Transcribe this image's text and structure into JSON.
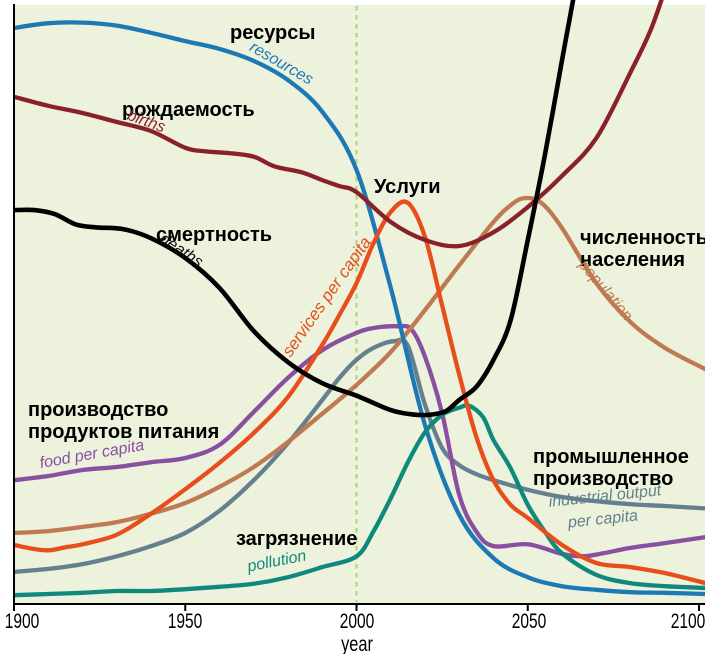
{
  "canvas": {
    "page_background": "#ffffff",
    "plot_background": "#ecf2dc",
    "axis_color": "#000000"
  },
  "chart_data": {
    "type": "line",
    "title": "",
    "xlabel": "year",
    "ylabel": "",
    "x_range": [
      1900,
      2100
    ],
    "x_ticks": [
      1900,
      1950,
      2000,
      2050,
      2100
    ],
    "x_tick_labels": [
      "1900",
      "1950",
      "2000",
      "2050",
      "2100"
    ],
    "y_axis_note": "unlabeled relative scale, 0 = bottom axis, 1 = top of plot",
    "grid": false,
    "legend": "labels drawn next to curves",
    "reference_line": {
      "year": 2000,
      "style": "dashed",
      "color": "#afd67f"
    },
    "series": [
      {
        "id": "resources",
        "label_ru": "ресурсы",
        "label_en": "resources",
        "color": "#1d79b4",
        "points": [
          [
            1900,
            0.96
          ],
          [
            1910,
            0.968
          ],
          [
            1920,
            0.969
          ],
          [
            1930,
            0.964
          ],
          [
            1940,
            0.952
          ],
          [
            1950,
            0.938
          ],
          [
            1960,
            0.925
          ],
          [
            1970,
            0.905
          ],
          [
            1980,
            0.873
          ],
          [
            1990,
            0.82
          ],
          [
            2000,
            0.723
          ],
          [
            2010,
            0.526
          ],
          [
            2020,
            0.297
          ],
          [
            2030,
            0.147
          ],
          [
            2040,
            0.075
          ],
          [
            2050,
            0.043
          ],
          [
            2060,
            0.028
          ],
          [
            2070,
            0.022
          ],
          [
            2080,
            0.018
          ],
          [
            2090,
            0.017
          ],
          [
            2102,
            0.015
          ]
        ]
      },
      {
        "id": "births",
        "label_ru": "рождаемость",
        "label_en": "births",
        "color": "#8a212a",
        "points": [
          [
            1900,
            0.845
          ],
          [
            1910,
            0.83
          ],
          [
            1920,
            0.818
          ],
          [
            1930,
            0.803
          ],
          [
            1940,
            0.788
          ],
          [
            1950,
            0.76
          ],
          [
            1956,
            0.754
          ],
          [
            1963,
            0.751
          ],
          [
            1970,
            0.745
          ],
          [
            1976,
            0.729
          ],
          [
            1984,
            0.719
          ],
          [
            1990,
            0.706
          ],
          [
            1995,
            0.696
          ],
          [
            2000,
            0.686
          ],
          [
            2010,
            0.636
          ],
          [
            2020,
            0.606
          ],
          [
            2030,
            0.596
          ],
          [
            2040,
            0.619
          ],
          [
            2050,
            0.661
          ],
          [
            2060,
            0.713
          ],
          [
            2070,
            0.776
          ],
          [
            2080,
            0.886
          ],
          [
            2086,
            0.958
          ],
          [
            2091,
            1.04
          ]
        ]
      },
      {
        "id": "deaths",
        "label_ru": "смертность",
        "label_en": "deaths",
        "color": "#000000",
        "points": [
          [
            1900,
            0.656
          ],
          [
            1906,
            0.656
          ],
          [
            1912,
            0.649
          ],
          [
            1918,
            0.632
          ],
          [
            1924,
            0.627
          ],
          [
            1932,
            0.624
          ],
          [
            1940,
            0.609
          ],
          [
            1950,
            0.576
          ],
          [
            1960,
            0.526
          ],
          [
            1970,
            0.454
          ],
          [
            1980,
            0.402
          ],
          [
            1990,
            0.367
          ],
          [
            2000,
            0.346
          ],
          [
            2010,
            0.322
          ],
          [
            2016,
            0.315
          ],
          [
            2021,
            0.314
          ],
          [
            2026,
            0.32
          ],
          [
            2030,
            0.339
          ],
          [
            2035,
            0.361
          ],
          [
            2040,
            0.406
          ],
          [
            2045,
            0.472
          ],
          [
            2050,
            0.606
          ],
          [
            2055,
            0.748
          ],
          [
            2060,
            0.906
          ],
          [
            2064,
            1.03
          ]
        ]
      },
      {
        "id": "services",
        "label_ru": "Услуги",
        "label_en": "services per capita",
        "color": "#e84e1c",
        "points": [
          [
            1900,
            0.097
          ],
          [
            1905,
            0.091
          ],
          [
            1910,
            0.088
          ],
          [
            1915,
            0.093
          ],
          [
            1920,
            0.098
          ],
          [
            1930,
            0.114
          ],
          [
            1940,
            0.149
          ],
          [
            1950,
            0.19
          ],
          [
            1960,
            0.234
          ],
          [
            1970,
            0.284
          ],
          [
            1980,
            0.344
          ],
          [
            1990,
            0.431
          ],
          [
            1995,
            0.481
          ],
          [
            2000,
            0.534
          ],
          [
            2005,
            0.601
          ],
          [
            2010,
            0.653
          ],
          [
            2015,
            0.668
          ],
          [
            2020,
            0.611
          ],
          [
            2025,
            0.497
          ],
          [
            2030,
            0.381
          ],
          [
            2035,
            0.277
          ],
          [
            2040,
            0.205
          ],
          [
            2045,
            0.164
          ],
          [
            2050,
            0.142
          ],
          [
            2060,
            0.097
          ],
          [
            2070,
            0.067
          ],
          [
            2080,
            0.06
          ],
          [
            2090,
            0.05
          ],
          [
            2102,
            0.033
          ]
        ]
      },
      {
        "id": "population",
        "label_ru": "численность\nнаселения",
        "label_en": "population",
        "color": "#c07a51",
        "points": [
          [
            1900,
            0.117
          ],
          [
            1910,
            0.12
          ],
          [
            1920,
            0.127
          ],
          [
            1930,
            0.135
          ],
          [
            1940,
            0.149
          ],
          [
            1950,
            0.167
          ],
          [
            1960,
            0.194
          ],
          [
            1970,
            0.227
          ],
          [
            1980,
            0.269
          ],
          [
            1990,
            0.316
          ],
          [
            2000,
            0.364
          ],
          [
            2010,
            0.419
          ],
          [
            2020,
            0.489
          ],
          [
            2030,
            0.564
          ],
          [
            2040,
            0.636
          ],
          [
            2045,
            0.664
          ],
          [
            2049,
            0.676
          ],
          [
            2054,
            0.668
          ],
          [
            2060,
            0.626
          ],
          [
            2070,
            0.534
          ],
          [
            2080,
            0.469
          ],
          [
            2090,
            0.426
          ],
          [
            2102,
            0.39
          ]
        ]
      },
      {
        "id": "food",
        "label_ru": "производство\nпродуктов питания",
        "label_en": "food per capita",
        "color": "#8a4fa0",
        "points": [
          [
            1900,
            0.205
          ],
          [
            1910,
            0.212
          ],
          [
            1920,
            0.222
          ],
          [
            1930,
            0.227
          ],
          [
            1940,
            0.235
          ],
          [
            1950,
            0.242
          ],
          [
            1960,
            0.264
          ],
          [
            1970,
            0.319
          ],
          [
            1980,
            0.376
          ],
          [
            1990,
            0.422
          ],
          [
            2000,
            0.451
          ],
          [
            2006,
            0.46
          ],
          [
            2012,
            0.462
          ],
          [
            2016,
            0.457
          ],
          [
            2020,
            0.411
          ],
          [
            2025,
            0.317
          ],
          [
            2030,
            0.18
          ],
          [
            2035,
            0.119
          ],
          [
            2040,
            0.095
          ],
          [
            2050,
            0.098
          ],
          [
            2060,
            0.082
          ],
          [
            2066,
            0.078
          ],
          [
            2072,
            0.083
          ],
          [
            2080,
            0.092
          ],
          [
            2090,
            0.1
          ],
          [
            2102,
            0.11
          ]
        ]
      },
      {
        "id": "industrial",
        "label_ru": "промышленное\nпроизводство",
        "label_en": "industrial output per capita",
        "label_en_lines": [
          "industrial output",
          "per capita"
        ],
        "color": "#64808f",
        "points": [
          [
            1900,
            0.052
          ],
          [
            1910,
            0.057
          ],
          [
            1920,
            0.065
          ],
          [
            1930,
            0.078
          ],
          [
            1940,
            0.095
          ],
          [
            1950,
            0.117
          ],
          [
            1960,
            0.154
          ],
          [
            1970,
            0.205
          ],
          [
            1980,
            0.267
          ],
          [
            1990,
            0.339
          ],
          [
            1995,
            0.376
          ],
          [
            2000,
            0.406
          ],
          [
            2005,
            0.426
          ],
          [
            2011,
            0.437
          ],
          [
            2015,
            0.429
          ],
          [
            2020,
            0.331
          ],
          [
            2025,
            0.259
          ],
          [
            2030,
            0.23
          ],
          [
            2035,
            0.215
          ],
          [
            2040,
            0.205
          ],
          [
            2050,
            0.189
          ],
          [
            2060,
            0.177
          ],
          [
            2070,
            0.17
          ],
          [
            2080,
            0.165
          ],
          [
            2090,
            0.162
          ],
          [
            2102,
            0.158
          ]
        ]
      },
      {
        "id": "pollution",
        "label_ru": "загрязнение",
        "label_en": "pollution",
        "color": "#10897d",
        "points": [
          [
            1900,
            0.013
          ],
          [
            1910,
            0.015
          ],
          [
            1920,
            0.017
          ],
          [
            1930,
            0.02
          ],
          [
            1940,
            0.02
          ],
          [
            1950,
            0.023
          ],
          [
            1960,
            0.027
          ],
          [
            1970,
            0.032
          ],
          [
            1980,
            0.043
          ],
          [
            1990,
            0.06
          ],
          [
            2000,
            0.078
          ],
          [
            2005,
            0.12
          ],
          [
            2010,
            0.175
          ],
          [
            2015,
            0.235
          ],
          [
            2020,
            0.285
          ],
          [
            2025,
            0.314
          ],
          [
            2030,
            0.326
          ],
          [
            2033,
            0.329
          ],
          [
            2037,
            0.31
          ],
          [
            2040,
            0.272
          ],
          [
            2045,
            0.225
          ],
          [
            2050,
            0.164
          ],
          [
            2055,
            0.119
          ],
          [
            2060,
            0.083
          ],
          [
            2070,
            0.047
          ],
          [
            2080,
            0.033
          ],
          [
            2090,
            0.028
          ],
          [
            2102,
            0.025
          ]
        ]
      }
    ],
    "draw_order": [
      "industrial",
      "food",
      "population",
      "resources",
      "pollution",
      "services",
      "births",
      "deaths"
    ]
  }
}
